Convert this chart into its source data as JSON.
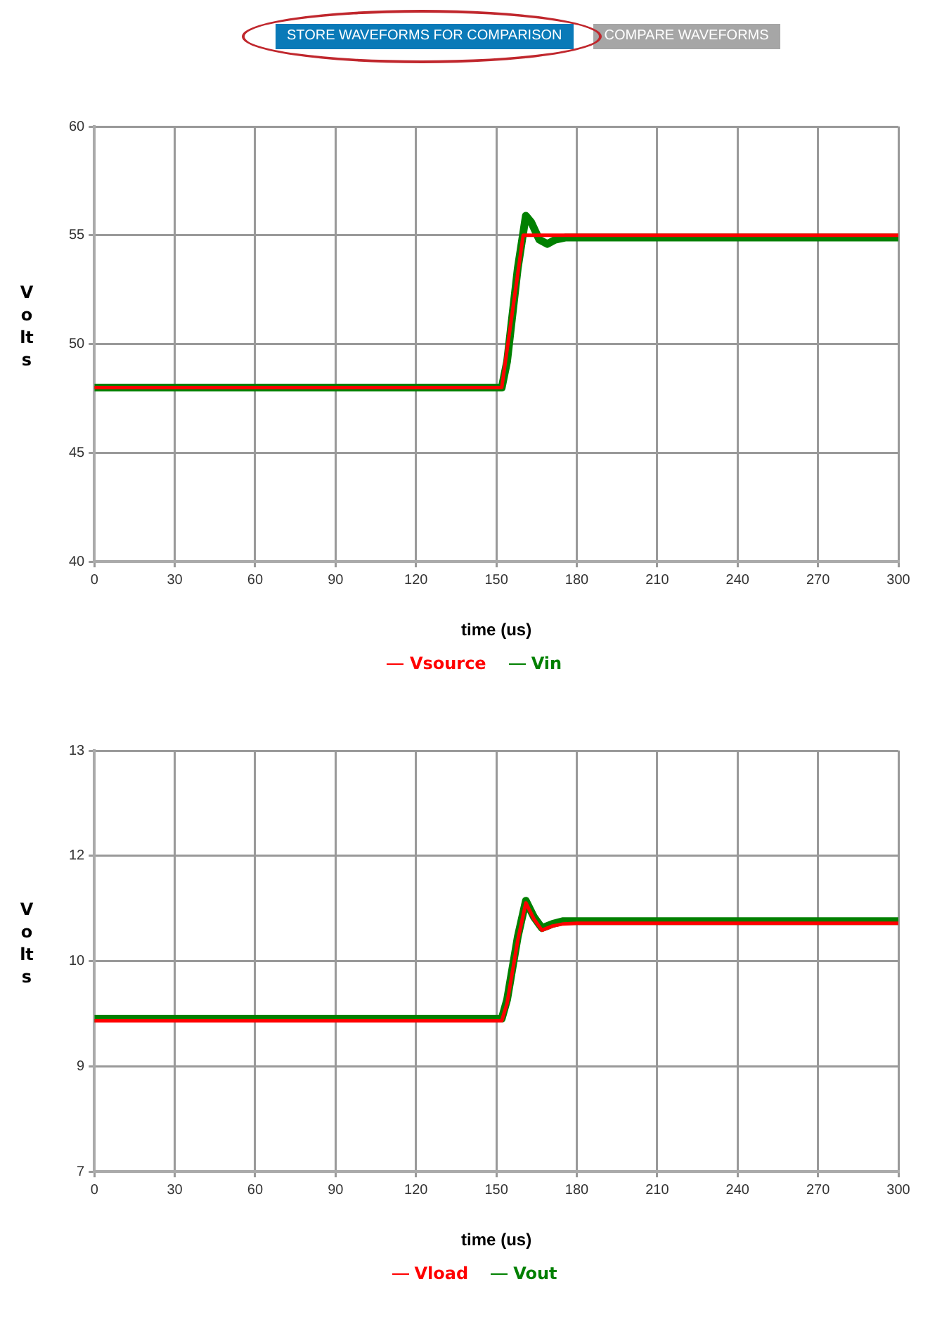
{
  "chart_data": [
    {
      "type": "line",
      "annotations": [
        "STORE WAVEFORMS FOR COMPARISON",
        "COMPARE WAVEFORMS"
      ],
      "xlabel": "time (us)",
      "ylabel": "Volts",
      "xlim": [
        0,
        300
      ],
      "xticks": [
        0,
        30,
        60,
        90,
        120,
        150,
        180,
        210,
        240,
        270,
        300
      ],
      "ylim": [
        40,
        60
      ],
      "yticks": [
        40,
        45,
        50,
        55,
        60
      ],
      "grid": true,
      "legend": "bottom",
      "marker": "none",
      "series": [
        {
          "name": "Vsource",
          "color": "#ff0000",
          "x": [
            0,
            152,
            160,
            300
          ],
          "values": [
            48,
            48,
            55,
            55
          ]
        },
        {
          "name": "Vin",
          "color": "#008000",
          "x": [
            0,
            152,
            154,
            158,
            161,
            163,
            166,
            169,
            172,
            176,
            180,
            300
          ],
          "values": [
            48,
            48,
            49.2,
            53.5,
            55.9,
            55.6,
            54.8,
            54.6,
            54.8,
            54.9,
            54.9,
            54.9
          ]
        }
      ]
    },
    {
      "type": "line",
      "xlabel": "time (us)",
      "ylabel": "Volts",
      "xlim": [
        0,
        300
      ],
      "xticks": [
        0,
        30,
        60,
        90,
        120,
        150,
        180,
        210,
        240,
        270,
        300
      ],
      "ylim": [
        7,
        13
      ],
      "yticks": [
        7,
        {
          "value": 8.5,
          "label": "9"
        },
        10,
        {
          "value": 11.5,
          "label": "12"
        },
        13
      ],
      "grid": true,
      "legend": "bottom",
      "marker": "none",
      "series": [
        {
          "name": "Vload",
          "color": "#ff0000",
          "x": [
            0,
            152,
            154,
            158,
            161,
            164,
            167,
            171,
            175,
            180,
            300
          ],
          "values": [
            9.15,
            9.15,
            9.4,
            10.3,
            10.83,
            10.6,
            10.44,
            10.5,
            10.53,
            10.54,
            10.54
          ]
        },
        {
          "name": "Vout",
          "color": "#008000",
          "x": [
            0,
            152,
            154,
            158,
            161,
            164,
            167,
            171,
            175,
            180,
            300
          ],
          "values": [
            9.18,
            9.18,
            9.45,
            10.35,
            10.86,
            10.63,
            10.47,
            10.53,
            10.57,
            10.57,
            10.57
          ]
        }
      ]
    }
  ]
}
